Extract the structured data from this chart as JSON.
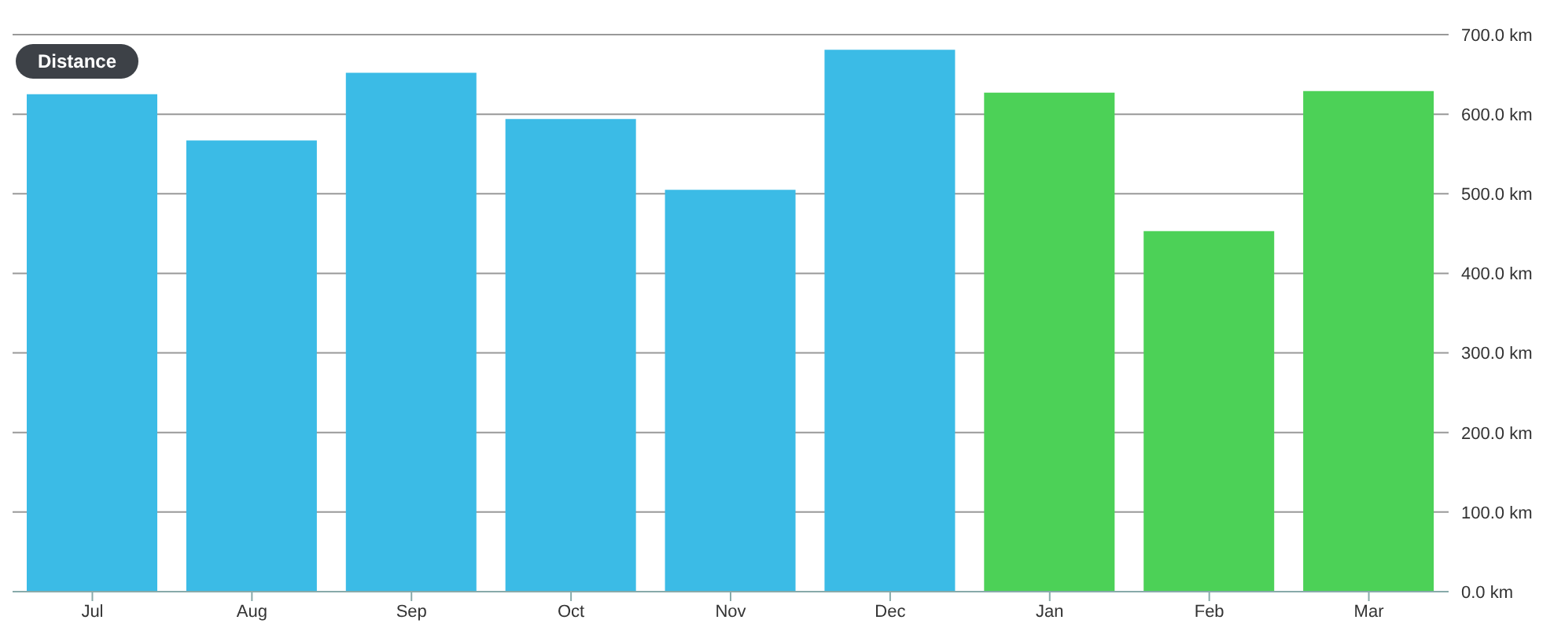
{
  "chart_data": {
    "type": "bar",
    "title": "Distance",
    "categories": [
      "Jul",
      "Aug",
      "Sep",
      "Oct",
      "Nov",
      "Dec",
      "Jan",
      "Feb",
      "Mar"
    ],
    "values": [
      625,
      567,
      652,
      594,
      505,
      681,
      627,
      453,
      629
    ],
    "colors": [
      "#3bbbe6",
      "#3bbbe6",
      "#3bbbe6",
      "#3bbbe6",
      "#3bbbe6",
      "#3bbbe6",
      "#4cd157",
      "#4cd157",
      "#4cd157"
    ],
    "ylim": [
      0,
      700
    ],
    "yticks": [
      {
        "value": 0,
        "label": "0.0 km"
      },
      {
        "value": 100,
        "label": "100.0 km"
      },
      {
        "value": 200,
        "label": "200.0 km"
      },
      {
        "value": 300,
        "label": "300.0 km"
      },
      {
        "value": 400,
        "label": "400.0 km"
      },
      {
        "value": 500,
        "label": "500.0 km"
      },
      {
        "value": 600,
        "label": "600.0 km"
      },
      {
        "value": 700,
        "label": "700.0 km"
      }
    ],
    "grid": "y"
  }
}
